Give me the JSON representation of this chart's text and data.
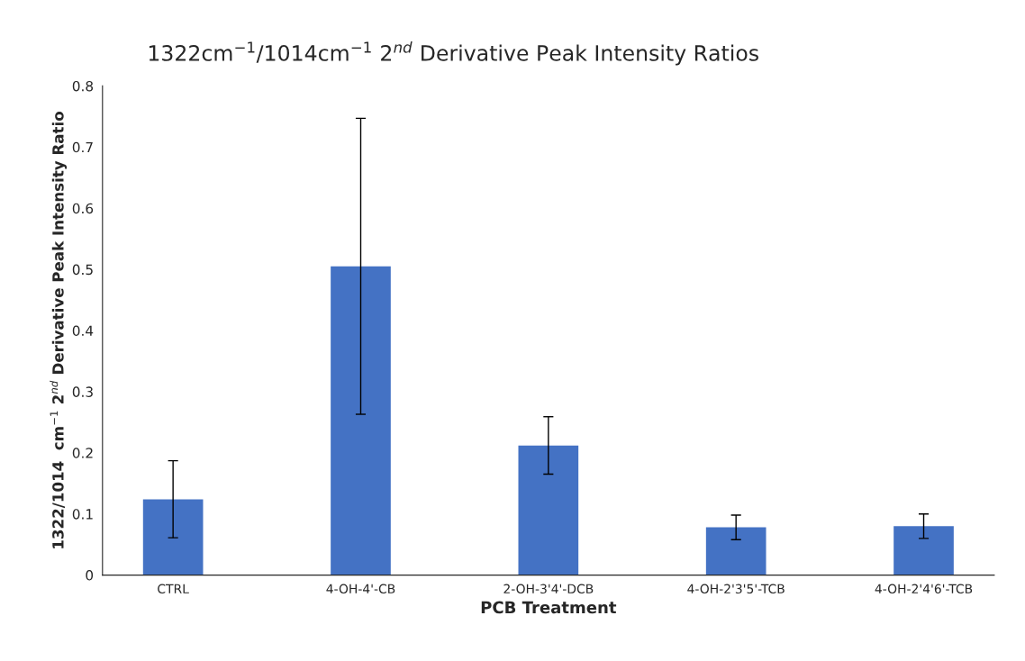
{
  "chart_data": {
    "type": "bar",
    "title": "1322cm$^{−1}$/1014cm$^{−1}$ 2$^{nd}$ Derivative Peak Intensity Ratios",
    "xlabel": "PCB Treatment",
    "ylabel": "1322/1014  cm$^{−1}$ 2$^{nd}$ Derivative Peak Intensity Ratio",
    "categories": [
      "CTRL",
      "4-OH-4'-CB",
      "2-OH-3'4'-DCB",
      "4-OH-2'3'5'-TCB",
      "4-OH-2'4'6'-TCB"
    ],
    "values": [
      0.124,
      0.505,
      0.212,
      0.078,
      0.08
    ],
    "errors": [
      0.063,
      0.242,
      0.047,
      0.02,
      0.02
    ],
    "color": "#4472c4",
    "ylim": [
      0,
      0.8
    ],
    "yticks": [
      0,
      0.1,
      0.2,
      0.3,
      0.4,
      0.5,
      0.6,
      0.7,
      0.8
    ],
    "grid": false,
    "legend": false
  }
}
